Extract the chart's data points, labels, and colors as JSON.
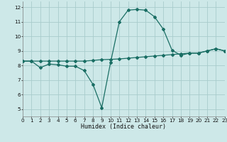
{
  "xlabel": "Humidex (Indice chaleur)",
  "bg_color": "#cde8e8",
  "grid_color": "#a8cccc",
  "line_color": "#1a6e64",
  "line1_x": [
    0,
    1,
    2,
    3,
    4,
    5,
    6,
    7,
    8,
    9,
    10,
    11,
    12,
    13,
    14,
    15,
    16,
    17,
    18,
    19,
    20,
    21,
    22,
    23
  ],
  "line1_y": [
    8.3,
    8.3,
    7.85,
    8.1,
    8.05,
    7.95,
    7.95,
    7.65,
    6.7,
    5.1,
    8.2,
    11.0,
    11.8,
    11.85,
    11.8,
    11.35,
    10.5,
    9.05,
    8.7,
    8.85,
    8.85,
    9.0,
    9.15,
    9.0
  ],
  "line2_x": [
    0,
    1,
    2,
    3,
    4,
    5,
    6,
    7,
    8,
    9,
    10,
    11,
    12,
    13,
    14,
    15,
    16,
    17,
    18,
    19,
    20,
    21,
    22,
    23
  ],
  "line2_y": [
    8.3,
    8.3,
    8.3,
    8.3,
    8.3,
    8.3,
    8.3,
    8.3,
    8.35,
    8.4,
    8.42,
    8.45,
    8.5,
    8.55,
    8.6,
    8.65,
    8.7,
    8.75,
    8.8,
    8.85,
    8.85,
    9.0,
    9.15,
    9.0
  ],
  "xlim": [
    0,
    23
  ],
  "ylim": [
    4.5,
    12.4
  ],
  "yticks": [
    5,
    6,
    7,
    8,
    9,
    10,
    11,
    12
  ],
  "xticks": [
    0,
    1,
    2,
    3,
    4,
    5,
    6,
    7,
    8,
    9,
    10,
    11,
    12,
    13,
    14,
    15,
    16,
    17,
    18,
    19,
    20,
    21,
    22,
    23
  ],
  "xlabel_fontsize": 6.0,
  "tick_fontsize": 5.2,
  "marker_size": 2.0,
  "linewidth": 0.9
}
